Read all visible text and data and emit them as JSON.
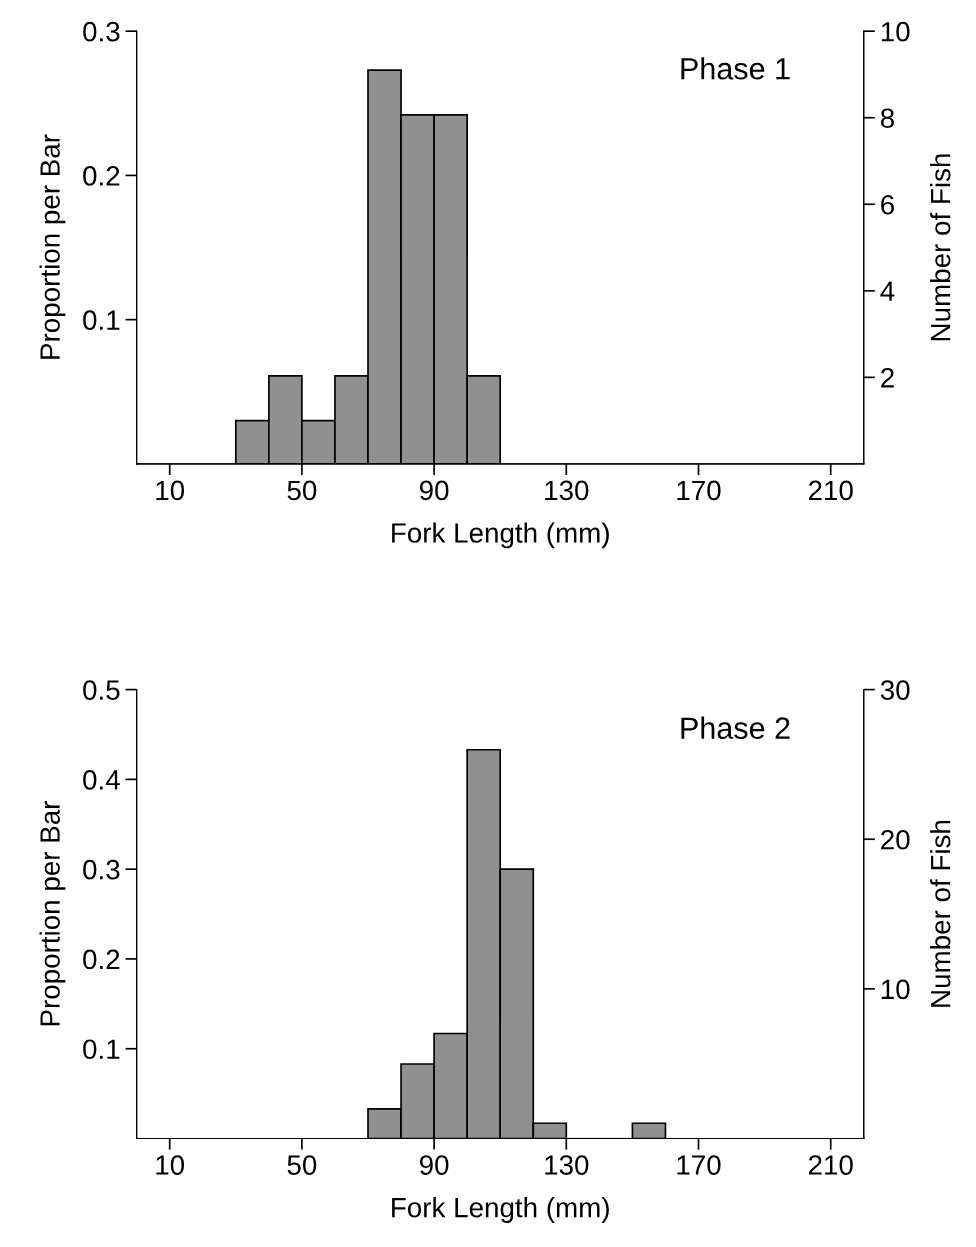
{
  "chart_data": [
    {
      "type": "histogram",
      "annotations": [
        "Phase 1"
      ],
      "xlabel": "Fork Length (mm)",
      "ylabel": "Proportion per Bar",
      "y2label": "Number of Fish",
      "bins": [
        30,
        40,
        50,
        60,
        70,
        80,
        90,
        100,
        110
      ],
      "values": [
        0.03,
        0.061,
        0.03,
        0.061,
        0.273,
        0.242,
        0.242,
        0.061
      ],
      "color": "#909090",
      "xlim": [
        0,
        220
      ],
      "xticks": [
        10,
        50,
        90,
        130,
        170,
        210
      ],
      "ylim": [
        0,
        0.3
      ],
      "yticks": [
        0.1,
        0.2,
        0.3
      ],
      "y2lim": [
        0,
        10
      ],
      "y2ticks": [
        2,
        4,
        6,
        8,
        10
      ],
      "grid": false
    },
    {
      "type": "histogram",
      "annotations": [
        "Phase 2"
      ],
      "xlabel": "Fork Length (mm)",
      "ylabel": "Proportion per Bar",
      "y2label": "Number of Fish",
      "bins": [
        70,
        80,
        90,
        100,
        110,
        120,
        130,
        140,
        150,
        160
      ],
      "values": [
        0.033,
        0.083,
        0.117,
        0.433,
        0.3,
        0.017,
        0,
        0,
        0.017
      ],
      "color": "#909090",
      "xlim": [
        0,
        220
      ],
      "xticks": [
        10,
        50,
        90,
        130,
        170,
        210
      ],
      "ylim": [
        0,
        0.5
      ],
      "yticks": [
        0.1,
        0.2,
        0.3,
        0.4,
        0.5
      ],
      "y2lim": [
        0,
        30
      ],
      "y2ticks": [
        10,
        20,
        30
      ],
      "grid": false
    }
  ]
}
